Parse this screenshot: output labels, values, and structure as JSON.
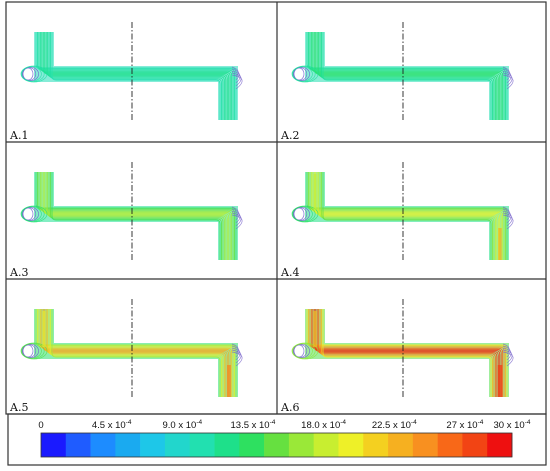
{
  "panels": [
    {
      "label": "A.1",
      "intensity": 0.15
    },
    {
      "label": "A.2",
      "intensity": 0.2
    },
    {
      "label": "A.3",
      "intensity": 0.38
    },
    {
      "label": "A.4",
      "intensity": 0.45
    },
    {
      "label": "A.5",
      "intensity": 0.6
    },
    {
      "label": "A.6",
      "intensity": 0.8
    }
  ],
  "colorbar": {
    "min": 0,
    "max": 30,
    "ticks": [
      {
        "value": 0,
        "mantissa": "0",
        "exponent": ""
      },
      {
        "value": 4.5,
        "mantissa": "4.5 x 10",
        "exponent": "-4"
      },
      {
        "value": 9.0,
        "mantissa": "9.0 x 10",
        "exponent": "-4"
      },
      {
        "value": 13.5,
        "mantissa": "13.5 x 10",
        "exponent": "-4"
      },
      {
        "value": 18.0,
        "mantissa": "18.0 x 10",
        "exponent": "-4"
      },
      {
        "value": 22.5,
        "mantissa": "22.5 x 10",
        "exponent": "-4"
      },
      {
        "value": 27,
        "mantissa": "27 x 10",
        "exponent": "-4"
      },
      {
        "value": 30,
        "mantissa": "30 x 10",
        "exponent": "-4"
      }
    ],
    "colors": [
      "#1a1aff",
      "#1f5cff",
      "#1d8cff",
      "#1aaaf0",
      "#1ec7e8",
      "#22d6cc",
      "#22e0b0",
      "#1ee08a",
      "#2ee060",
      "#66e040",
      "#9ae838",
      "#c8ee30",
      "#eef028",
      "#f4d020",
      "#f6b020",
      "#f89020",
      "#f86818",
      "#f24414",
      "#ee1010"
    ]
  },
  "colors": {
    "line": "#222222",
    "border": "#333333"
  }
}
